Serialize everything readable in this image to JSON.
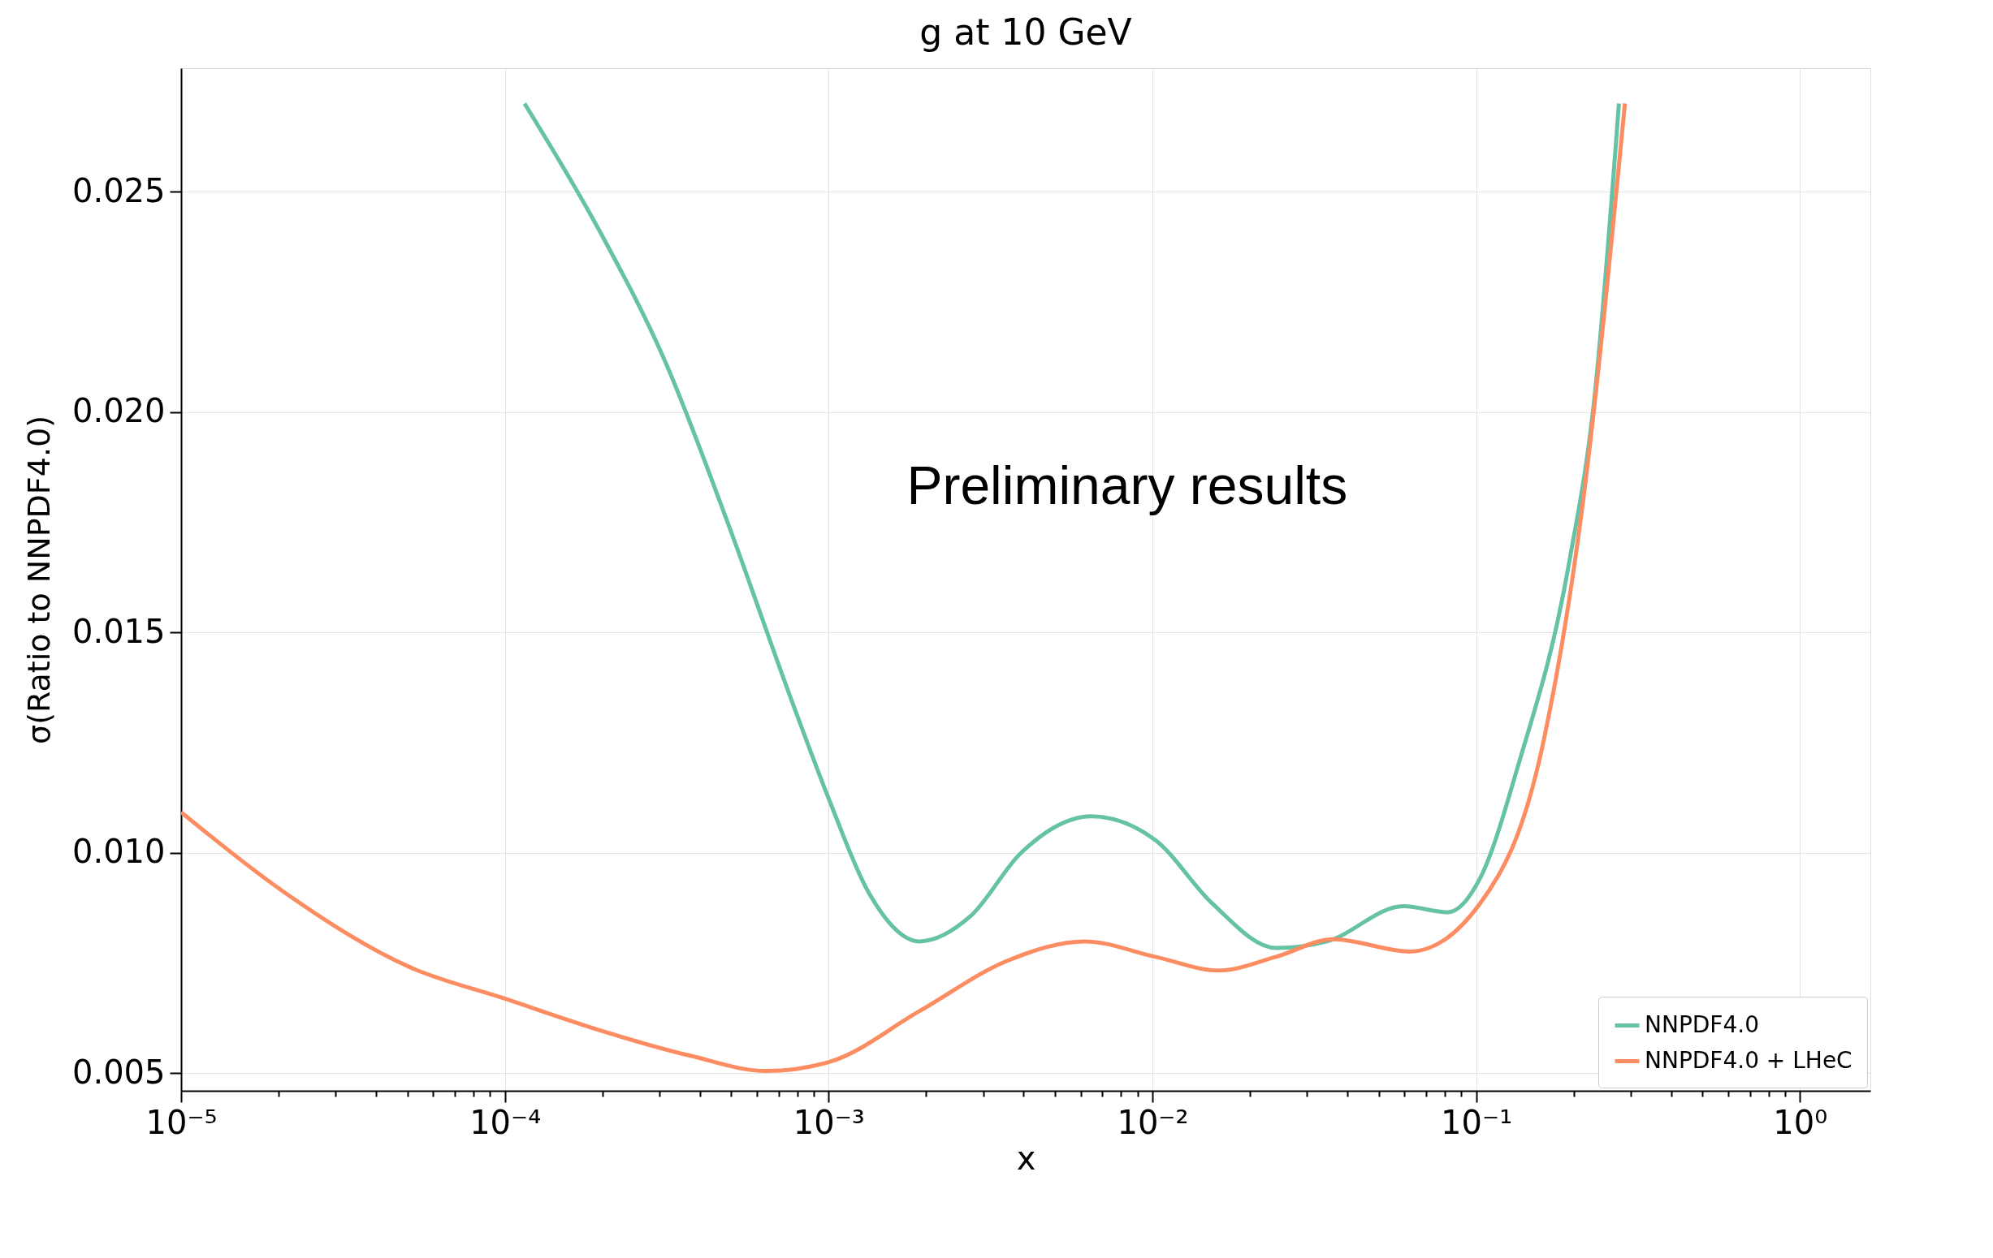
{
  "chart_data": {
    "type": "line",
    "title": "g at 10 GeV",
    "xlabel": "x",
    "ylabel": "σ(Ratio to NNPDF4.0)",
    "annotations": [
      "Preliminary results"
    ],
    "log": "x",
    "grid": true,
    "legend": "bottom right",
    "line_style": "solid",
    "marker": "none",
    "xlim": [
      1e-05,
      1.65
    ],
    "ylim": [
      0.0046,
      0.0278
    ],
    "xticks": [
      {
        "value": 1e-05,
        "label": "10⁻⁵"
      },
      {
        "value": 0.0001,
        "label": "10⁻⁴"
      },
      {
        "value": 0.001,
        "label": "10⁻³"
      },
      {
        "value": 0.01,
        "label": "10⁻²"
      },
      {
        "value": 0.1,
        "label": "10⁻¹"
      },
      {
        "value": 1,
        "label": "10⁰"
      },
      {
        "value": 2e-05,
        "label": null
      },
      {
        "value": 3e-05,
        "label": null
      },
      {
        "value": 4e-05,
        "label": null
      },
      {
        "value": 5e-05,
        "label": null
      },
      {
        "value": 6e-05,
        "label": null
      },
      {
        "value": 7e-05,
        "label": null
      },
      {
        "value": 8e-05,
        "label": null
      },
      {
        "value": 9e-05,
        "label": null
      },
      {
        "value": 0.0002,
        "label": null
      },
      {
        "value": 0.0003,
        "label": null
      },
      {
        "value": 0.0004,
        "label": null
      },
      {
        "value": 0.0005,
        "label": null
      },
      {
        "value": 0.0006,
        "label": null
      },
      {
        "value": 0.0007,
        "label": null
      },
      {
        "value": 0.0008,
        "label": null
      },
      {
        "value": 0.0009,
        "label": null
      },
      {
        "value": 0.002,
        "label": null
      },
      {
        "value": 0.003,
        "label": null
      },
      {
        "value": 0.004,
        "label": null
      },
      {
        "value": 0.005,
        "label": null
      },
      {
        "value": 0.006,
        "label": null
      },
      {
        "value": 0.007,
        "label": null
      },
      {
        "value": 0.008,
        "label": null
      },
      {
        "value": 0.009,
        "label": null
      },
      {
        "value": 0.02,
        "label": null
      },
      {
        "value": 0.03,
        "label": null
      },
      {
        "value": 0.04,
        "label": null
      },
      {
        "value": 0.05,
        "label": null
      },
      {
        "value": 0.06,
        "label": null
      },
      {
        "value": 0.07,
        "label": null
      },
      {
        "value": 0.08,
        "label": null
      },
      {
        "value": 0.09,
        "label": null
      },
      {
        "value": 0.2,
        "label": null
      },
      {
        "value": 0.3,
        "label": null
      },
      {
        "value": 0.4,
        "label": null
      },
      {
        "value": 0.5,
        "label": null
      },
      {
        "value": 0.6,
        "label": null
      },
      {
        "value": 0.7,
        "label": null
      },
      {
        "value": 0.8,
        "label": null
      },
      {
        "value": 0.9,
        "label": null
      }
    ],
    "yticks": [
      {
        "value": 0.005,
        "label": "0.005"
      },
      {
        "value": 0.01,
        "label": "0.010"
      },
      {
        "value": 0.015,
        "label": "0.015"
      },
      {
        "value": 0.02,
        "label": "0.020"
      },
      {
        "value": 0.025,
        "label": "0.025"
      }
    ],
    "series": [
      {
        "name": "NNPDF4.0",
        "color": "#66c2a5",
        "x": [
          0.000115,
          0.000197,
          0.00031,
          0.000489,
          0.000769,
          0.00101,
          0.00132,
          0.00191,
          0.00274,
          0.00393,
          0.00647,
          0.0102,
          0.0153,
          0.0241,
          0.0346,
          0.0597,
          0.0818,
          0.1028,
          0.135,
          0.194,
          0.232,
          0.276
        ],
        "values": [
          0.027,
          0.02408,
          0.02121,
          0.01747,
          0.01345,
          0.01115,
          0.00914,
          0.00799,
          0.00856,
          0.01,
          0.01083,
          0.01029,
          0.00885,
          0.00784,
          0.00799,
          0.00879,
          0.00865,
          0.00942,
          0.012,
          0.01661,
          0.02034,
          0.027
        ]
      },
      {
        "name": "NNPDF4.0 + LHeC",
        "color": "#fc8d62",
        "x": [
          1e-05,
          2.05e-05,
          5.07e-05,
          0.0001,
          0.000197,
          0.000372,
          0.000641,
          0.00101,
          0.00191,
          0.00359,
          0.00618,
          0.0102,
          0.016,
          0.0241,
          0.0362,
          0.0624,
          0.1028,
          0.162,
          0.212,
          0.288
        ],
        "values": [
          0.01092,
          0.00914,
          0.00741,
          0.00669,
          0.00597,
          0.0054,
          0.00505,
          0.00526,
          0.00641,
          0.00756,
          0.00799,
          0.00764,
          0.00733,
          0.00764,
          0.00804,
          0.00776,
          0.00885,
          0.01258,
          0.01776,
          0.027
        ]
      }
    ]
  }
}
